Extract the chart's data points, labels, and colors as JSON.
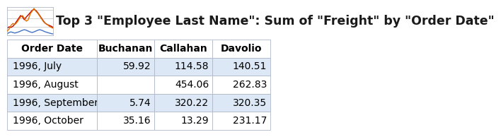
{
  "title": "Top 3 \"Employee Last Name\": Sum of \"Freight\" by \"Order Date\"",
  "columns": [
    "Order Date",
    "Buchanan",
    "Callahan",
    "Davolio"
  ],
  "rows": [
    [
      "1996, July",
      "59.92",
      "114.58",
      "140.51"
    ],
    [
      "1996, August",
      "",
      "454.06",
      "262.83"
    ],
    [
      "1996, September",
      "5.74",
      "320.22",
      "320.35"
    ],
    [
      "1996, October",
      "35.16",
      "13.29",
      "231.17"
    ]
  ],
  "header_bg": "#ffffff",
  "row_bg_odd": "#dce8f5",
  "row_bg_even": "#ffffff",
  "border_color": "#b0b8c8",
  "text_color": "#000000",
  "title_color": "#1a1a1a",
  "title_fontsize": 12.5,
  "header_fontsize": 10,
  "cell_fontsize": 10,
  "figure_bg": "#ffffff",
  "outer_bg": "#ffffff",
  "icon_colors": [
    "#e07000",
    "#c00000",
    "#4472c4"
  ],
  "icon_border": "#b0b8c8",
  "separator_color": "#b0b8c8"
}
